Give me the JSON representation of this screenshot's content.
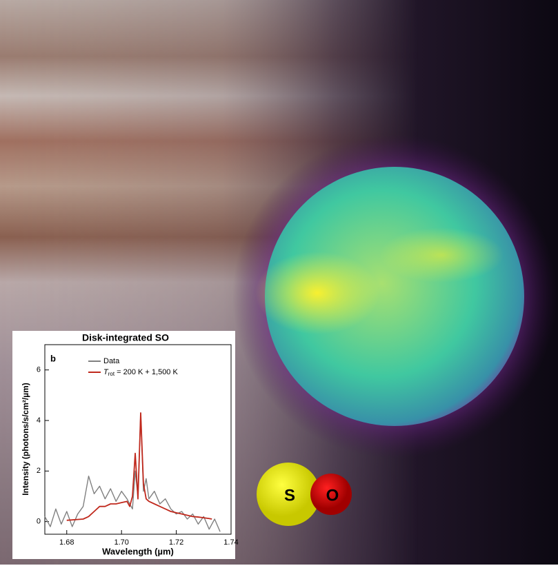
{
  "chart_data": {
    "type": "line",
    "title": "Disk-integrated SO",
    "panel_label": "b",
    "x_label": "Wavelength (µm)",
    "y_label": "Intensity (photons/s/cm²/µm)",
    "xlim": [
      1.672,
      1.74
    ],
    "ylim": [
      -0.5,
      7
    ],
    "xticks": [
      1.68,
      {
        "value": 1.7,
        "label": "1.70"
      },
      1.72,
      1.74
    ],
    "yticks": [
      0,
      2,
      4,
      6
    ],
    "series": [
      {
        "name": "Data",
        "color": "#808080",
        "x": [
          1.672,
          1.674,
          1.676,
          1.678,
          1.68,
          1.682,
          1.684,
          1.686,
          1.688,
          1.69,
          1.692,
          1.694,
          1.696,
          1.698,
          1.7,
          1.702,
          1.704,
          1.705,
          1.706,
          1.707,
          1.708,
          1.709,
          1.71,
          1.712,
          1.714,
          1.716,
          1.718,
          1.72,
          1.722,
          1.724,
          1.726,
          1.728,
          1.73,
          1.732,
          1.734,
          1.736
        ],
        "values": [
          0.2,
          -0.2,
          0.5,
          -0.1,
          0.4,
          -0.2,
          0.3,
          0.6,
          1.8,
          1.1,
          1.4,
          0.9,
          1.3,
          0.8,
          1.2,
          0.9,
          0.5,
          2.0,
          1.0,
          4.3,
          1.2,
          1.7,
          0.9,
          1.2,
          0.7,
          0.9,
          0.5,
          0.3,
          0.4,
          0.1,
          0.3,
          -0.1,
          0.2,
          -0.3,
          0.1,
          -0.4
        ]
      },
      {
        "name": "Trot = 200 K + 1,500 K",
        "color": "#c0281c",
        "x": [
          1.68,
          1.686,
          1.688,
          1.69,
          1.692,
          1.694,
          1.696,
          1.698,
          1.7,
          1.702,
          1.703,
          1.704,
          1.705,
          1.706,
          1.707,
          1.708,
          1.709,
          1.71,
          1.712,
          1.714,
          1.716,
          1.718,
          1.72,
          1.722,
          1.724,
          1.726,
          1.728,
          1.73,
          1.732,
          1.733
        ],
        "values": [
          0.05,
          0.1,
          0.2,
          0.4,
          0.6,
          0.6,
          0.7,
          0.7,
          0.75,
          0.8,
          0.6,
          1.0,
          2.7,
          0.9,
          4.3,
          1.5,
          0.9,
          0.8,
          0.7,
          0.6,
          0.5,
          0.4,
          0.35,
          0.3,
          0.25,
          0.2,
          0.18,
          0.15,
          0.12,
          0.1
        ]
      }
    ]
  },
  "molecule": {
    "atoms": [
      "S",
      "O"
    ]
  }
}
